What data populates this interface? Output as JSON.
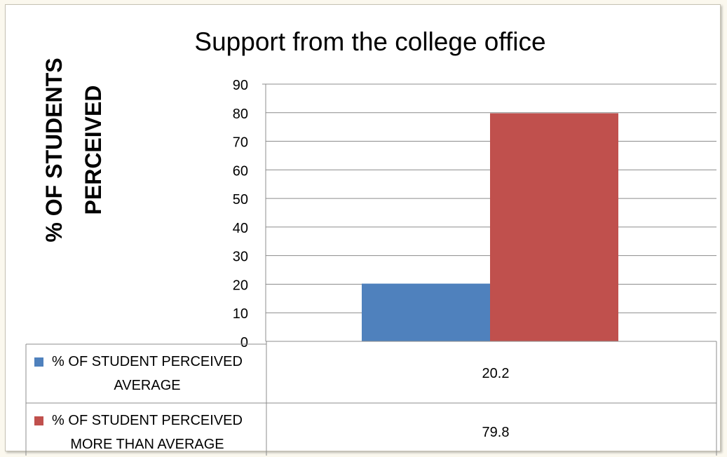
{
  "chart_data": {
    "type": "bar",
    "title": "Support from the college office",
    "ylabel_lines": [
      "% OF STUDENTS",
      "PERCEIVED"
    ],
    "xlabel": "",
    "ylim": [
      0,
      90
    ],
    "yticks": [
      0,
      10,
      20,
      30,
      40,
      50,
      60,
      70,
      80,
      90
    ],
    "grid": true,
    "legend": "data-table",
    "series": [
      {
        "name_lines": [
          "% OF STUDENT PERCEIVED",
          "AVERAGE"
        ],
        "values": [
          20.2
        ],
        "value_label": "20.2",
        "color": "#4f81bd"
      },
      {
        "name_lines": [
          "% OF STUDENT PERCEIVED",
          "MORE THAN AVERAGE"
        ],
        "values": [
          79.8
        ],
        "value_label": "79.8",
        "color": "#c0504d"
      }
    ]
  }
}
